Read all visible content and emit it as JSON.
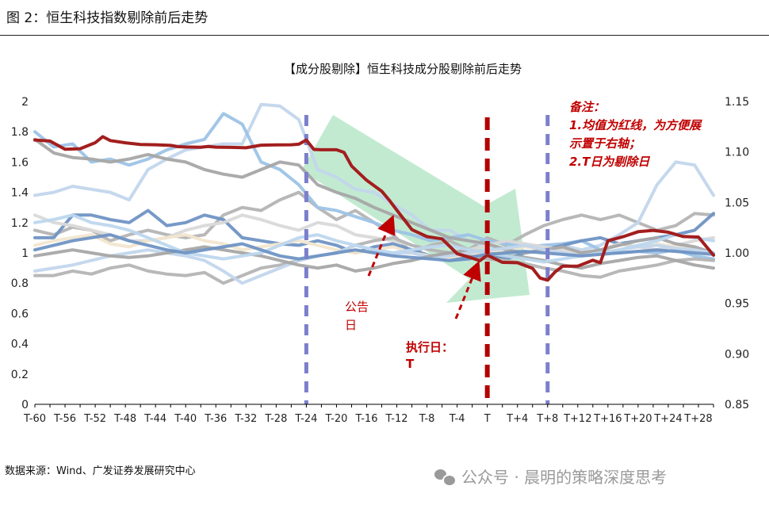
{
  "figure_title": "图 2：恒生科技指数剔除前后走势",
  "source": "数据来源：Wind、广发证券发展研究中心",
  "watermark": "公众号 · 晨明的策略深度思考",
  "colors": {
    "mean": "#A31E1E",
    "individuals": [
      "#B4B4B4",
      "#C2D6EC",
      "#9DC3E6",
      "#6F93C4",
      "#D9D9D9",
      "#F2E6CF",
      "#A6A6A6",
      "#BDD7EE"
    ],
    "arrow": "#8FD9AB",
    "event_line": "#7C7FCB",
    "t_line": "#B30000",
    "annotation": "#C00000"
  },
  "chart_data": {
    "type": "line",
    "title": "【成分股剔除】恒生科技成分股剔除前后走势",
    "left_axis": {
      "ylim": [
        0,
        2
      ],
      "ticks": [
        "0",
        "0.2",
        "0.4",
        "0.6",
        "0.8",
        "1",
        "1.2",
        "1.4",
        "1.6",
        "1.8",
        "2"
      ]
    },
    "right_axis": {
      "ylim": [
        0.85,
        1.15
      ],
      "ticks": [
        "0.85",
        "0.90",
        "0.95",
        "1.00",
        "1.05",
        "1.10",
        "1.15"
      ]
    },
    "xlim": [
      -60,
      30
    ],
    "x_tick_labels": [
      "T-60",
      "T-56",
      "T-52",
      "T-48",
      "T-44",
      "T-40",
      "T-36",
      "T-32",
      "T-28",
      "T-24",
      "T-20",
      "T-16",
      "T-12",
      "T-8",
      "T-4",
      "T",
      "T+4",
      "T+8",
      "T+12",
      "T+16",
      "T+20",
      "T+24",
      "T+28"
    ],
    "mean_series": {
      "axis": "right",
      "x": [
        -60,
        -58,
        -56,
        -54,
        -52,
        -51,
        -50,
        -48,
        -46,
        -44,
        -42,
        -41,
        -40,
        -38,
        -37,
        -36,
        -34,
        -32,
        -30,
        -28,
        -26,
        -25,
        -24,
        -23,
        -22,
        -20,
        -19,
        -18,
        -16,
        -14,
        -13,
        -12,
        -10,
        -8,
        -6,
        -4,
        -2,
        -1,
        0,
        2,
        4,
        6,
        7,
        8,
        9,
        10,
        12,
        14,
        15,
        16,
        18,
        20,
        22,
        24,
        26,
        28,
        30
      ],
      "values": [
        1.1118,
        1.1108,
        1.1027,
        1.1032,
        1.1092,
        1.1151,
        1.1113,
        1.1091,
        1.1074,
        1.1071,
        1.1065,
        1.1052,
        1.1049,
        1.1047,
        1.1054,
        1.1048,
        1.1045,
        1.1041,
        1.1067,
        1.107,
        1.1071,
        1.1077,
        1.1118,
        1.1025,
        1.1022,
        1.1022,
        1.0995,
        1.0861,
        1.0719,
        1.0611,
        1.0522,
        1.0424,
        1.023,
        1.0161,
        1.0139,
        0.9993,
        0.9948,
        0.9922,
        0.9978,
        0.9906,
        0.9903,
        0.9847,
        0.9751,
        0.973,
        0.9812,
        0.9869,
        0.9869,
        0.9927,
        0.9903,
        1.012,
        1.016,
        1.021,
        1.0223,
        1.0205,
        1.0162,
        1.0157,
        0.9977
      ]
    },
    "individual_series": [
      {
        "axis": "left",
        "color_index": 0,
        "values": [
          1.15,
          1.12,
          1.17,
          1.15,
          1.08,
          1.12,
          1.15,
          1.12,
          1.1,
          1.12,
          1.25,
          1.3,
          1.28,
          1.35,
          1.4,
          1.3,
          1.22,
          1.28,
          1.2,
          1.12,
          1.0,
          1.05,
          1.08,
          1.02,
          1.1,
          1.05,
          1.12,
          1.18,
          1.22,
          1.25,
          1.22,
          1.25,
          1.2,
          1.15,
          1.18,
          1.26,
          1.25
        ]
      },
      {
        "axis": "left",
        "color_index": 1,
        "values": [
          1.38,
          1.4,
          1.44,
          1.42,
          1.4,
          1.35,
          1.55,
          1.62,
          1.68,
          1.7,
          1.72,
          1.72,
          1.98,
          1.97,
          1.88,
          1.55,
          1.5,
          1.42,
          1.4,
          1.32,
          1.25,
          1.15,
          1.15,
          1.08,
          1.05,
          1.03,
          1.0,
          1.02,
          1.05,
          1.02,
          1.05,
          1.12,
          1.2,
          1.45,
          1.6,
          1.58,
          1.38
        ]
      },
      {
        "axis": "left",
        "color_index": 2,
        "values": [
          1.8,
          1.7,
          1.72,
          1.6,
          1.62,
          1.58,
          1.62,
          1.68,
          1.72,
          1.75,
          1.92,
          1.85,
          1.6,
          1.55,
          1.45,
          1.3,
          1.28,
          1.24,
          1.2,
          1.15,
          1.12,
          1.08,
          1.1,
          1.12,
          1.08,
          1.06,
          1.04,
          1.05,
          1.06,
          1.08,
          1.02,
          1.0,
          1.01,
          1.0,
          1.02,
          0.98,
          0.96
        ]
      },
      {
        "axis": "left",
        "color_index": 3,
        "values": [
          1.1,
          1.1,
          1.25,
          1.25,
          1.22,
          1.2,
          1.28,
          1.18,
          1.2,
          1.25,
          1.22,
          1.1,
          1.08,
          1.06,
          1.05,
          1.08,
          1.05,
          1.0,
          1.04,
          1.06,
          1.02,
          0.98,
          0.95,
          0.96,
          0.98,
          0.96,
          1.0,
          1.02,
          1.05,
          1.08,
          1.1,
          1.06,
          1.08,
          1.1,
          1.12,
          1.15,
          1.26
        ]
      },
      {
        "axis": "left",
        "color_index": 4,
        "values": [
          1.25,
          1.2,
          1.18,
          1.15,
          1.12,
          1.08,
          1.08,
          1.1,
          1.15,
          1.18,
          1.2,
          1.25,
          1.22,
          1.18,
          1.15,
          1.2,
          1.18,
          1.12,
          1.1,
          1.08,
          1.05,
          1.02,
          1.0,
          1.02,
          1.05,
          1.08,
          1.06,
          1.04,
          1.02,
          1.0,
          1.02,
          1.06,
          1.04,
          1.02,
          1.05,
          1.08,
          1.1
        ]
      },
      {
        "axis": "left",
        "color_index": 5,
        "values": [
          1.05,
          1.08,
          1.1,
          1.12,
          1.06,
          1.04,
          1.08,
          1.1,
          1.12,
          1.08,
          1.06,
          1.02,
          1.04,
          1.06,
          1.08,
          1.05,
          1.02,
          1.0,
          1.02,
          1.04,
          1.0,
          0.98,
          0.96,
          0.98,
          1.0,
          1.02,
          1.04,
          1.02,
          1.0,
          0.98,
          1.0,
          1.02,
          1.04,
          1.06,
          1.04,
          1.02,
          1.0
        ]
      },
      {
        "axis": "left",
        "color_index": 6,
        "values": [
          1.75,
          1.66,
          1.63,
          1.62,
          1.6,
          1.62,
          1.65,
          1.62,
          1.6,
          1.55,
          1.52,
          1.5,
          1.55,
          1.6,
          1.58,
          1.45,
          1.4,
          1.36,
          1.3,
          1.25,
          1.2,
          1.15,
          1.1,
          1.08,
          1.06,
          1.02,
          1.0,
          1.02,
          1.04,
          1.0,
          1.02,
          1.05,
          1.08,
          1.1,
          1.06,
          1.04,
          1.0
        ]
      },
      {
        "axis": "left",
        "color_index": 0,
        "values": [
          0.85,
          0.85,
          0.88,
          0.86,
          0.9,
          0.92,
          0.88,
          0.86,
          0.85,
          0.87,
          0.8,
          0.85,
          0.9,
          0.92,
          0.95,
          0.98,
          1.0,
          1.05,
          1.08,
          1.1,
          1.05,
          1.02,
          1.0,
          0.98,
          0.96,
          0.95,
          0.93,
          0.9,
          0.88,
          0.85,
          0.84,
          0.88,
          0.9,
          0.92,
          0.95,
          0.96,
          0.95
        ]
      },
      {
        "axis": "left",
        "color_index": 1,
        "values": [
          0.88,
          0.9,
          0.92,
          0.95,
          0.98,
          1.0,
          1.02,
          1.0,
          0.98,
          0.95,
          0.88,
          0.8,
          0.85,
          0.9,
          0.95,
          0.98,
          1.0,
          1.05,
          1.02,
          1.0,
          1.0,
          0.97,
          0.98,
          1.0,
          1.02,
          1.03,
          1.05,
          1.02,
          1.0,
          0.98,
          1.0,
          1.02,
          1.04,
          1.05,
          1.03,
          1.02,
          1.0
        ]
      },
      {
        "axis": "left",
        "color_index": 6,
        "values": [
          0.98,
          1.0,
          1.02,
          1.0,
          0.98,
          0.97,
          0.98,
          1.0,
          1.02,
          1.04,
          1.02,
          1.0,
          0.98,
          0.95,
          0.92,
          0.9,
          0.92,
          0.88,
          0.9,
          0.93,
          0.95,
          0.98,
          1.0,
          1.02,
          1.0,
          0.98,
          0.97,
          0.95,
          0.92,
          0.9,
          0.93,
          0.95,
          0.97,
          0.98,
          0.95,
          0.92,
          0.9
        ]
      },
      {
        "axis": "left",
        "color_index": 7,
        "values": [
          1.2,
          1.22,
          1.25,
          1.2,
          1.18,
          1.15,
          1.1,
          1.05,
          1.0,
          0.98,
          0.96,
          0.98,
          1.0,
          1.05,
          1.1,
          1.12,
          1.08,
          1.05,
          1.02,
          1.0,
          1.02,
          1.04,
          1.05,
          1.02,
          1.0,
          0.98,
          0.96,
          0.94,
          0.96,
          0.98,
          1.0,
          1.02,
          1.05,
          1.08,
          1.12,
          1.1,
          1.08
        ]
      },
      {
        "axis": "left",
        "color_index": 3,
        "values": [
          1.02,
          1.05,
          1.08,
          1.1,
          1.12,
          1.08,
          1.05,
          1.02,
          1.0,
          1.02,
          1.04,
          1.06,
          1.02,
          0.98,
          0.96,
          0.98,
          1.0,
          1.02,
          1.0,
          0.98,
          0.97,
          0.96,
          0.95,
          0.97,
          0.99,
          1.0,
          1.01,
          1.0,
          0.99,
          0.98,
          0.99,
          1.0,
          1.01,
          1.02,
          1.01,
          1.0,
          0.99
        ]
      }
    ],
    "vertical_lines": [
      {
        "x": -24,
        "style": "dashed",
        "color_key": "event_line"
      },
      {
        "x": 0,
        "style": "dashed",
        "color_key": "t_line"
      },
      {
        "x": 8,
        "style": "dashed",
        "color_key": "event_line"
      }
    ],
    "annotations": {
      "note_lines": [
        "备注：",
        "1.均值为红线，为方便展",
        "示置于右轴；",
        "2.T日为剔除日"
      ],
      "announce_lines": [
        "公告",
        "日"
      ],
      "exec_lines": [
        "执行日：",
        "T"
      ]
    }
  }
}
